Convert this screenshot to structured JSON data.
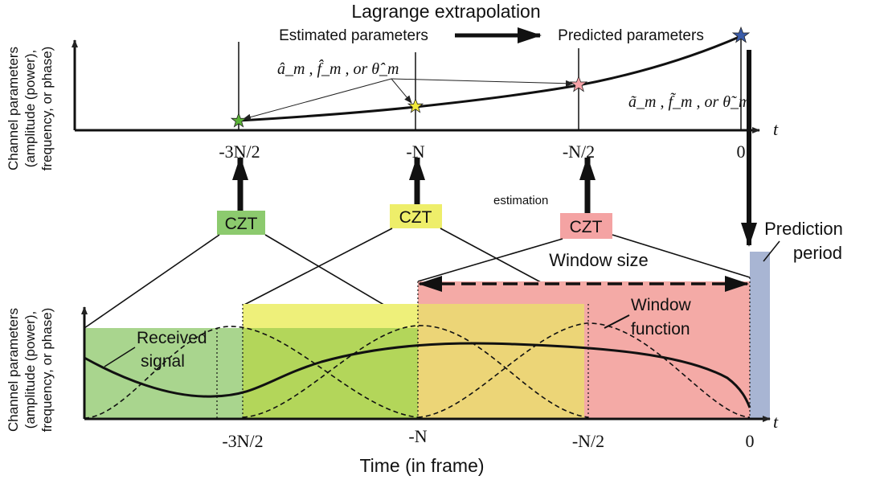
{
  "header": {
    "title": "Lagrange extrapolation",
    "estimated": "Estimated parameters",
    "predicted": "Predicted parameters"
  },
  "top_plot": {
    "ylabel_lines": [
      "Channel parameters",
      "(amplitude (power),",
      "frequency, or phase)"
    ],
    "t_label": "t",
    "tick_labels": [
      "-3N/2",
      "-N",
      "-N/2",
      "0"
    ],
    "hat_label": "â_m , f̂_m , or θ̂_m",
    "tilde_label": "ã_m , f̃_m , or θ̃_m"
  },
  "czt": {
    "label": "CZT",
    "estimation_text": "estimation",
    "colors": [
      "#8cca6e",
      "#eeee6a",
      "#f4a3a3"
    ]
  },
  "bottom_plot": {
    "ylabel_lines": [
      "Channel parameters",
      "(amplitude (power),",
      "frequency, or phase)"
    ],
    "xlabel": "Time (in frame)",
    "t_label": "t",
    "tick_labels": [
      "-3N/2",
      "-N",
      "-N/2",
      "0"
    ],
    "received_signal": [
      "Received",
      "signal"
    ],
    "window_function": [
      "Window",
      "function"
    ],
    "window_size": "Window size",
    "prediction_period": [
      "Prediction",
      "period"
    ]
  },
  "colors": {
    "green": "#8fc96f",
    "yellow": "#eef07a",
    "red": "#f4a9a5",
    "blue": "#a8b5d3",
    "star_green": "#5ab236",
    "star_yellow": "#f2e93a",
    "star_pink": "#f7a3a8",
    "star_blue": "#3a5ba8"
  }
}
